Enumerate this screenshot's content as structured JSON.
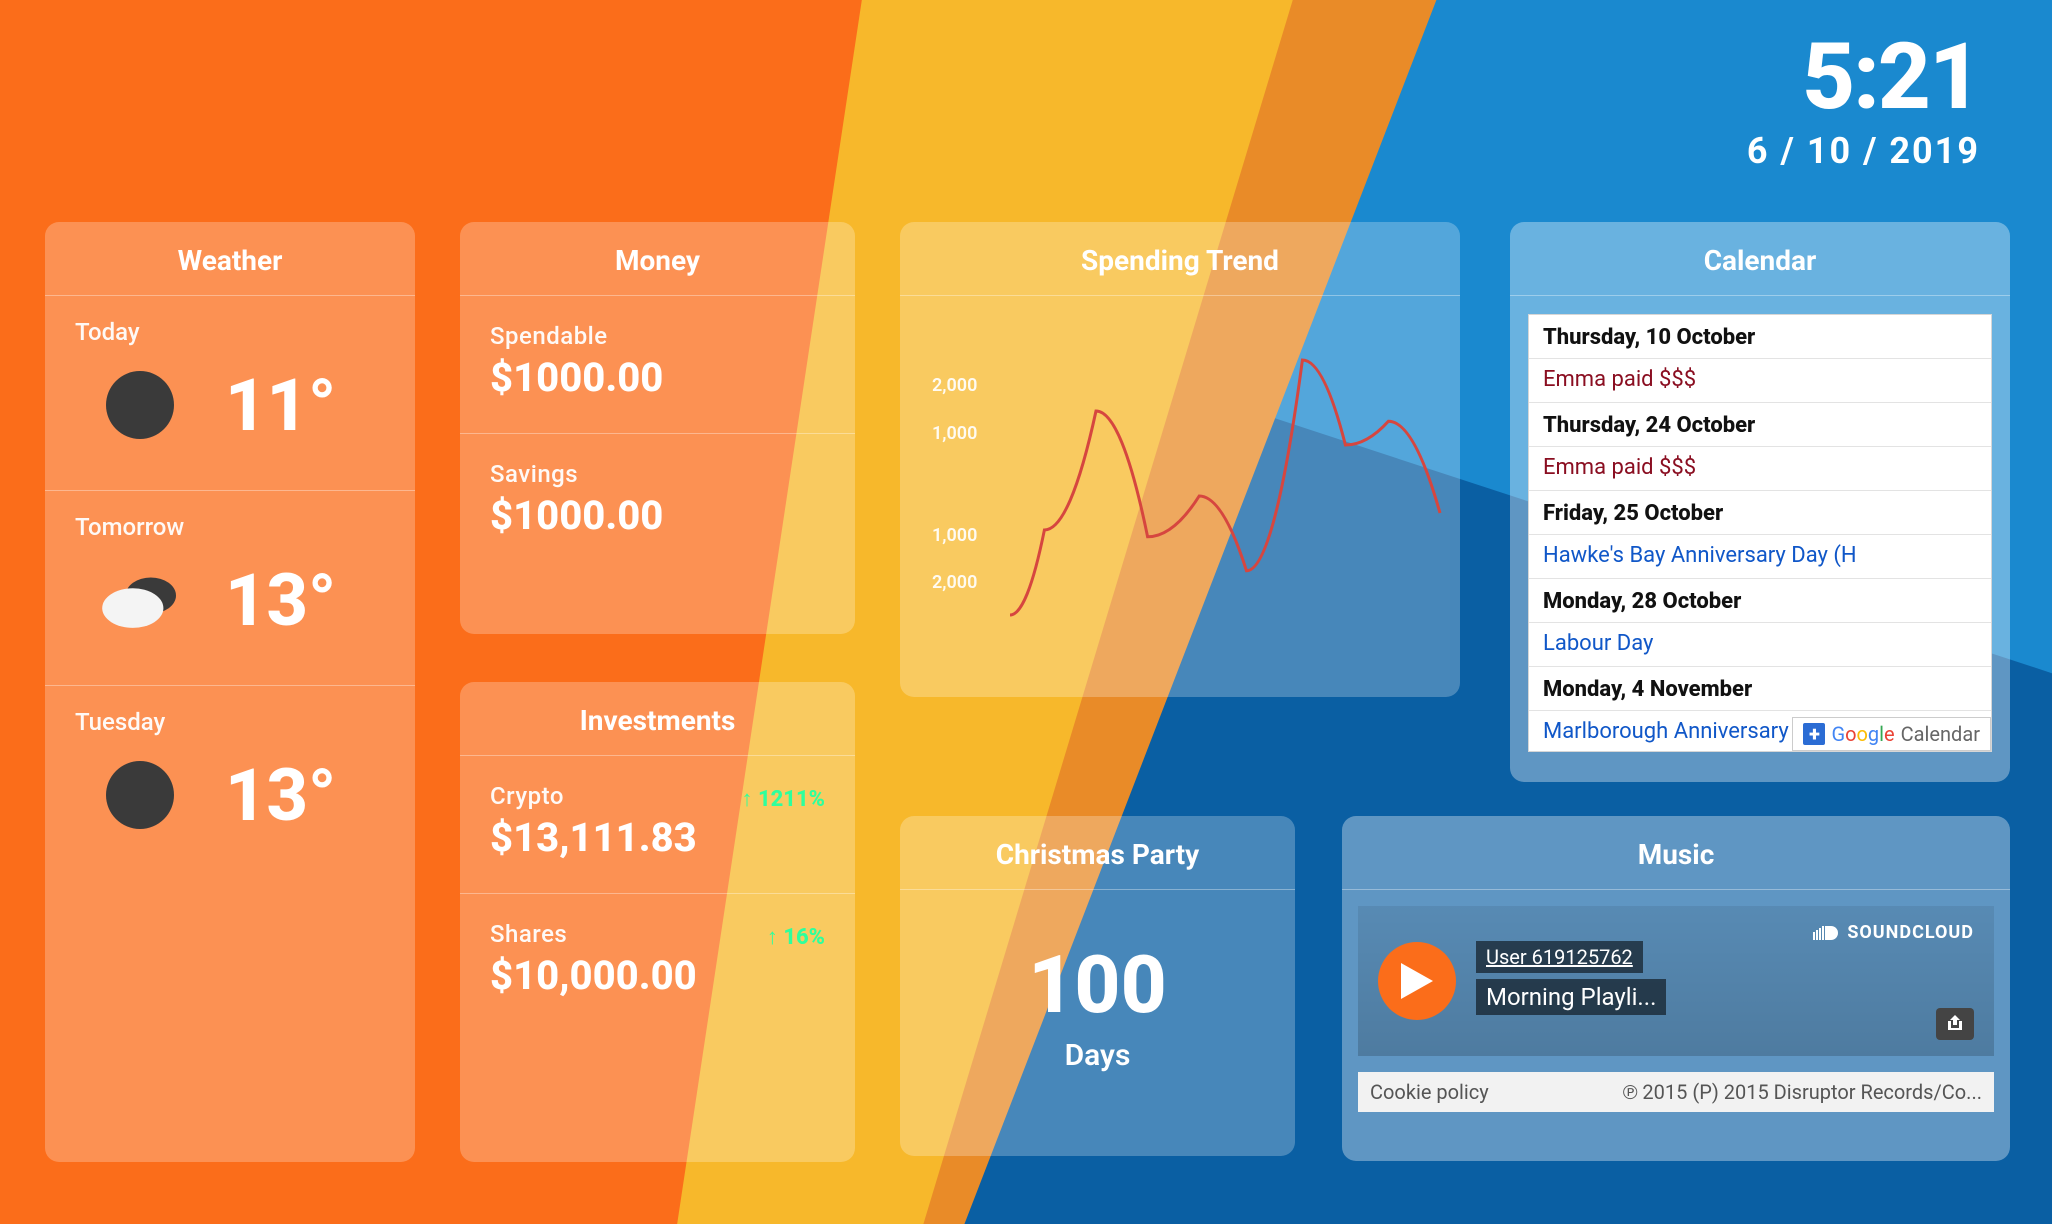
{
  "clock": {
    "time": "5:21",
    "date": "6 / 10 / 2019"
  },
  "background": {
    "colors": {
      "blue": "#1a89cf",
      "blue_dark": "#0a5fa3",
      "yellow": "#f7b82b",
      "orange_deep": "#e98b28",
      "orange": "#fb6d1a"
    }
  },
  "weather": {
    "title": "Weather",
    "days": [
      {
        "label": "Today",
        "temp": "11°",
        "icon": "sun",
        "icon_color": "#3a3a3a"
      },
      {
        "label": "Tomorrow",
        "temp": "13°",
        "icon": "clouds",
        "icon_color_front": "#f4f4f4",
        "icon_color_back": "#3a3a3a"
      },
      {
        "label": "Tuesday",
        "temp": "13°",
        "icon": "sun",
        "icon_color": "#3a3a3a"
      }
    ]
  },
  "money": {
    "title": "Money",
    "rows": [
      {
        "label": "Spendable",
        "value": "$1000.00"
      },
      {
        "label": "Savings",
        "value": "$1000.00"
      }
    ]
  },
  "investments": {
    "title": "Investments",
    "rows": [
      {
        "label": "Crypto",
        "value": "$13,111.83",
        "delta": "1211%",
        "delta_color": "#2eff9d"
      },
      {
        "label": "Shares",
        "value": "$10,000.00",
        "delta": "16%",
        "delta_color": "#2eff9d"
      }
    ]
  },
  "trend": {
    "title": "Spending Trend",
    "type": "line",
    "line_color": "#d6463f",
    "line_width": 3,
    "y_ticks_upper": [
      "2,000",
      "1,000"
    ],
    "y_ticks_lower": [
      "1,000",
      "2,000"
    ],
    "points_norm": [
      [
        0.0,
        0.85
      ],
      [
        0.08,
        0.6
      ],
      [
        0.2,
        0.25
      ],
      [
        0.32,
        0.62
      ],
      [
        0.44,
        0.5
      ],
      [
        0.55,
        0.72
      ],
      [
        0.68,
        0.1
      ],
      [
        0.78,
        0.35
      ],
      [
        0.88,
        0.28
      ],
      [
        1.0,
        0.55
      ]
    ]
  },
  "countdown": {
    "title": "Christmas Party",
    "value": "100",
    "unit": "Days"
  },
  "calendar": {
    "title": "Calendar",
    "items": [
      {
        "kind": "date",
        "text": "Thursday, 10 October"
      },
      {
        "kind": "event",
        "text": "Emma paid $$$",
        "color": "red"
      },
      {
        "kind": "date",
        "text": "Thursday, 24 October"
      },
      {
        "kind": "event",
        "text": "Emma paid $$$",
        "color": "red"
      },
      {
        "kind": "date",
        "text": "Friday, 25 October"
      },
      {
        "kind": "event",
        "text": "Hawke's Bay Anniversary Day (H",
        "color": "blue"
      },
      {
        "kind": "date",
        "text": "Monday, 28 October"
      },
      {
        "kind": "event",
        "text": "Labour Day",
        "color": "blue"
      },
      {
        "kind": "date",
        "text": "Monday, 4 November"
      },
      {
        "kind": "event",
        "text": "Marlborough Anniversary Day (M",
        "color": "blue"
      }
    ],
    "badge": {
      "plus": "+",
      "google": "Google",
      "calendar": "Calendar"
    }
  },
  "music": {
    "title": "Music",
    "user": "User 619125762",
    "track": "Morning Playli...",
    "brand": "SOUNDCLOUD",
    "cookie": "Cookie policy",
    "copyright": "℗ 2015 (P) 2015 Disruptor Records/Co...",
    "accent": "#fb6d1a"
  }
}
